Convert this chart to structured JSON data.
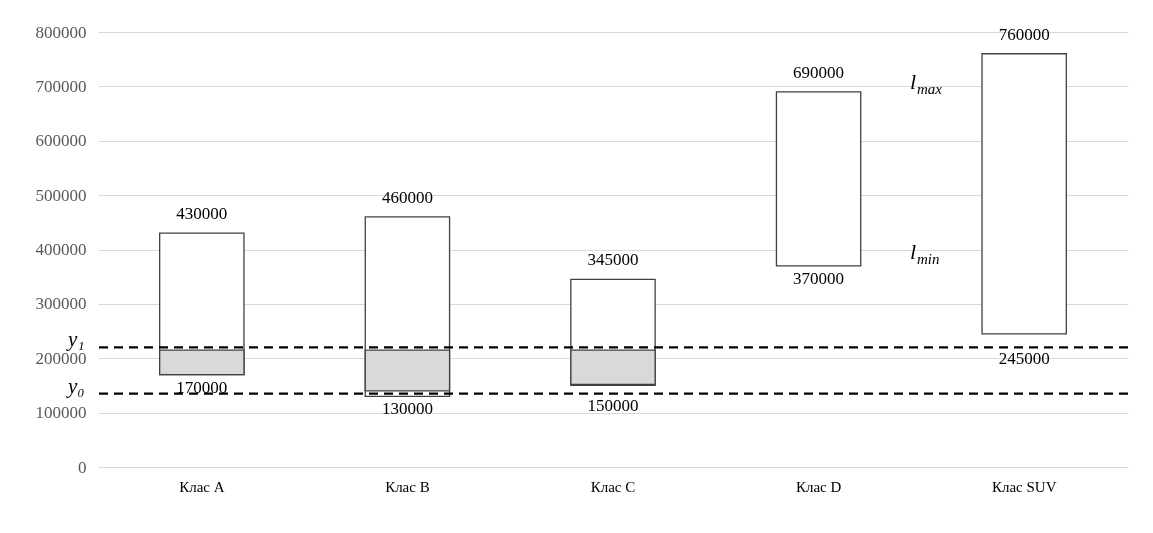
{
  "chart_data": {
    "type": "bar",
    "categories": [
      "Клас A",
      "Клас B",
      "Клас C",
      "Клас D",
      "Клас SUV"
    ],
    "series": [
      {
        "color": "#ffffff",
        "base": [
          170000,
          130000,
          150000,
          370000,
          245000
        ],
        "values": [
          260000,
          330000,
          195000,
          320000,
          515000
        ]
      },
      {
        "color": "#d9d9d9",
        "base": [
          170000,
          140000,
          152000,
          null,
          null
        ],
        "values": [
          45000,
          75000,
          63000,
          null,
          null
        ]
      }
    ],
    "ylim": [
      0,
      800000
    ],
    "yticks": [
      0,
      100000,
      200000,
      300000,
      400000,
      500000,
      600000,
      700000,
      800000
    ],
    "grid": "y",
    "ref_lines": [
      {
        "axis": "y",
        "value": 220000,
        "label": "y₁",
        "line_style": "dashed"
      },
      {
        "axis": "y",
        "value": 135000,
        "label": "y₀",
        "line_style": "dashed"
      }
    ],
    "annotations": [
      {
        "text": "430000",
        "x": "Клас A",
        "y": 430000
      },
      {
        "text": "170000",
        "x": "Клас A",
        "y": 170000
      },
      {
        "text": "460000",
        "x": "Клас B",
        "y": 460000
      },
      {
        "text": "130000",
        "x": "Клас B",
        "y": 130000
      },
      {
        "text": "345000",
        "x": "Клас C",
        "y": 345000
      },
      {
        "text": "150000",
        "x": "Клас C",
        "y": 150000
      },
      {
        "text": "690000",
        "x": "Клас D",
        "y": 690000
      },
      {
        "text": "370000",
        "x": "Клас D",
        "y": 370000
      },
      {
        "text": "760000",
        "x": "Клас SUV",
        "y": 760000
      },
      {
        "text": "245000",
        "x": "Клас SUV",
        "y": 245000
      },
      "l$_{max}$",
      "l$_{min}$"
    ]
  }
}
